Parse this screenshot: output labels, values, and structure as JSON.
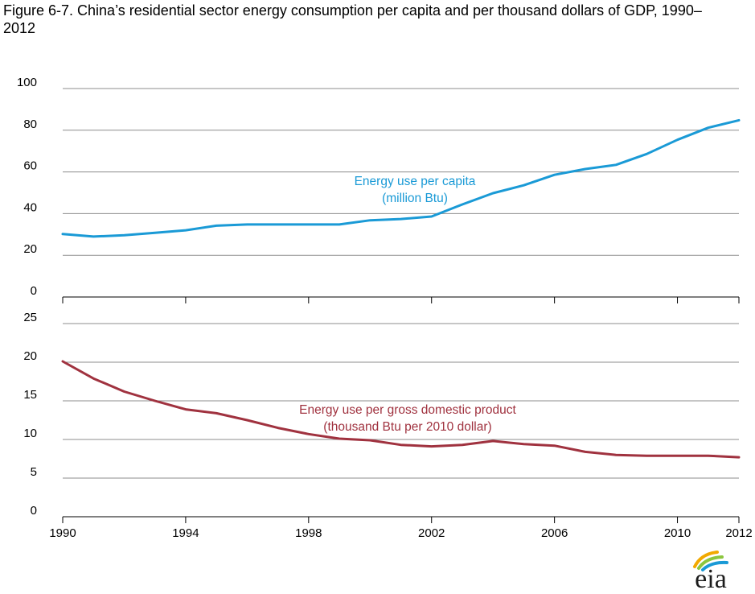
{
  "title": "Figure 6-7. China’s residential sector energy consumption per capita and per thousand dollars of GDP, 1990–2012",
  "logo_text": "eia",
  "colors": {
    "per_capita": "#1a9ad6",
    "per_gdp": "#a0323f",
    "grid": "#8c8c8c"
  },
  "chart_data": [
    {
      "type": "line",
      "panel": "top",
      "x": [
        1990,
        1991,
        1992,
        1993,
        1994,
        1995,
        1996,
        1997,
        1998,
        1999,
        2000,
        2001,
        2002,
        2003,
        2004,
        2005,
        2006,
        2007,
        2008,
        2009,
        2010,
        2011,
        2012
      ],
      "series": [
        {
          "name": "Energy use per capita (million Btu)",
          "label_lines": [
            "Energy use per capita",
            "(million Btu)"
          ],
          "values": [
            30.2,
            29.0,
            29.6,
            30.8,
            32.0,
            34.2,
            34.8,
            34.8,
            34.8,
            34.8,
            36.8,
            37.4,
            38.6,
            44.4,
            49.8,
            53.6,
            58.6,
            61.4,
            63.4,
            68.6,
            75.4,
            81.2,
            84.8
          ]
        }
      ],
      "ylim": [
        0,
        100
      ],
      "yticks": [
        0,
        20,
        40,
        60,
        80,
        100
      ],
      "grid": true
    },
    {
      "type": "line",
      "panel": "bottom",
      "x": [
        1990,
        1991,
        1992,
        1993,
        1994,
        1995,
        1996,
        1997,
        1998,
        1999,
        2000,
        2001,
        2002,
        2003,
        2004,
        2005,
        2006,
        2007,
        2008,
        2009,
        2010,
        2011,
        2012
      ],
      "series": [
        {
          "name": "Energy use per gross domestic product (thousand Btu per 2010 dollar)",
          "label_lines": [
            "Energy use per gross domestic product",
            "(thousand Btu per 2010 dollar)"
          ],
          "values": [
            20.1,
            17.9,
            16.2,
            15.0,
            13.9,
            13.4,
            12.5,
            11.5,
            10.7,
            10.1,
            9.9,
            9.3,
            9.1,
            9.3,
            9.8,
            9.4,
            9.2,
            8.4,
            8.0,
            7.9,
            7.9,
            7.9,
            7.7
          ]
        }
      ],
      "ylim": [
        0,
        25
      ],
      "yticks": [
        0,
        5,
        10,
        15,
        20,
        25
      ],
      "xticks": [
        1990,
        1994,
        1998,
        2002,
        2006,
        2010,
        2012
      ],
      "grid": true
    }
  ]
}
